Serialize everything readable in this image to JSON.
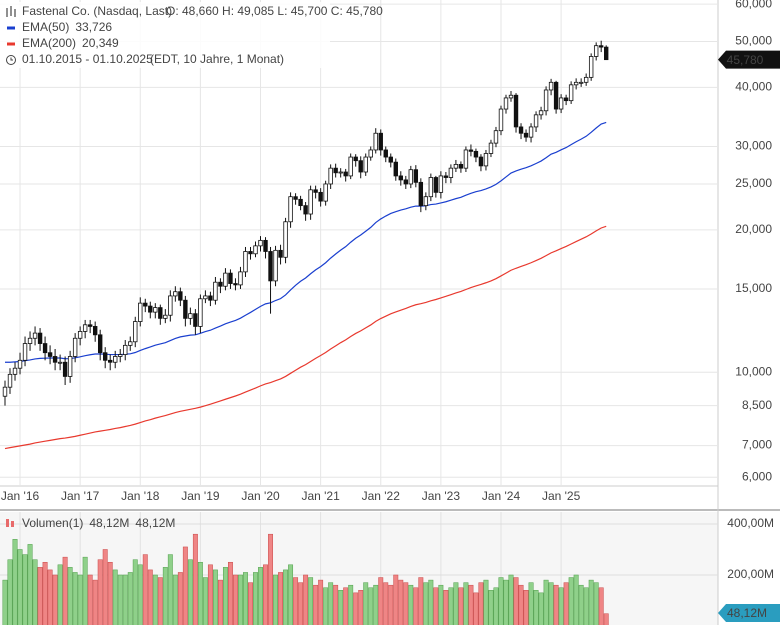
{
  "chart_data": [
    {
      "type": "candlestick",
      "title": "Fastenal Co. (Nasdaq, Last)",
      "ohlc_text": "O: 48,660   H: 49,085   L: 45,700   C: 45,780",
      "date_range": "01.10.2015 - 01.10.2025",
      "date_note": "(EDT, 10 Jahre, 1 Monat)",
      "last_label": "45,780",
      "up_color": "#ffffff",
      "down_color": "#111111",
      "x": [
        "2015-10",
        "2015-11",
        "2015-12",
        "2016-01",
        "2016-02",
        "2016-03",
        "2016-04",
        "2016-05",
        "2016-06",
        "2016-07",
        "2016-08",
        "2016-09",
        "2016-10",
        "2016-11",
        "2016-12",
        "2017-01",
        "2017-02",
        "2017-03",
        "2017-04",
        "2017-05",
        "2017-06",
        "2017-07",
        "2017-08",
        "2017-09",
        "2017-10",
        "2017-11",
        "2017-12",
        "2018-01",
        "2018-02",
        "2018-03",
        "2018-04",
        "2018-05",
        "2018-06",
        "2018-07",
        "2018-08",
        "2018-09",
        "2018-10",
        "2018-11",
        "2018-12",
        "2019-01",
        "2019-02",
        "2019-03",
        "2019-04",
        "2019-05",
        "2019-06",
        "2019-07",
        "2019-08",
        "2019-09",
        "2019-10",
        "2019-11",
        "2019-12",
        "2020-01",
        "2020-02",
        "2020-03",
        "2020-04",
        "2020-05",
        "2020-06",
        "2020-07",
        "2020-08",
        "2020-09",
        "2020-10",
        "2020-11",
        "2020-12",
        "2021-01",
        "2021-02",
        "2021-03",
        "2021-04",
        "2021-05",
        "2021-06",
        "2021-07",
        "2021-08",
        "2021-09",
        "2021-10",
        "2021-11",
        "2021-12",
        "2022-01",
        "2022-02",
        "2022-03",
        "2022-04",
        "2022-05",
        "2022-06",
        "2022-07",
        "2022-08",
        "2022-09",
        "2022-10",
        "2022-11",
        "2022-12",
        "2023-01",
        "2023-02",
        "2023-03",
        "2023-04",
        "2023-05",
        "2023-06",
        "2023-07",
        "2023-08",
        "2023-09",
        "2023-10",
        "2023-11",
        "2023-12",
        "2024-01",
        "2024-02",
        "2024-03",
        "2024-04",
        "2024-05",
        "2024-06",
        "2024-07",
        "2024-08",
        "2024-09",
        "2024-10",
        "2024-11",
        "2024-12",
        "2025-01",
        "2025-02",
        "2025-03",
        "2025-04",
        "2025-05",
        "2025-06",
        "2025-07",
        "2025-08",
        "2025-09",
        "2025-10"
      ],
      "open": [
        8.9,
        9.3,
        9.9,
        10.2,
        10.6,
        11.5,
        11.8,
        12.1,
        11.5,
        11.0,
        10.8,
        10.5,
        10.5,
        9.8,
        10.8,
        11.8,
        12.2,
        12.6,
        12.5,
        12.0,
        11.0,
        10.6,
        10.5,
        10.8,
        10.9,
        11.4,
        11.6,
        12.8,
        14.0,
        13.8,
        13.4,
        13.7,
        13.0,
        13.2,
        14.5,
        14.8,
        14.2,
        13.0,
        13.3,
        12.5,
        14.3,
        14.5,
        14.2,
        15.5,
        15.2,
        16.2,
        15.4,
        15.3,
        16.3,
        18.0,
        17.8,
        18.5,
        19.0,
        18.0,
        15.6,
        18.1,
        17.5,
        20.8,
        23.5,
        23.2,
        22.5,
        21.6,
        24.3,
        24.0,
        23.0,
        25.0,
        27.0,
        26.4,
        26.5,
        26.0,
        28.5,
        28.0,
        26.5,
        28.5,
        29.5,
        32.0,
        29.5,
        28.5,
        27.8,
        26.0,
        25.5,
        25.0,
        26.8,
        25.2,
        22.5,
        23.5,
        25.8,
        24.0,
        26.0,
        25.8,
        27.0,
        27.5,
        27.0,
        29.5,
        29.3,
        28.5,
        27.3,
        29.0,
        30.5,
        32.4,
        36.0,
        38.0,
        38.5,
        33.0,
        32.0,
        31.4,
        33.0,
        35.0,
        35.7,
        39.5,
        41.0,
        36.0,
        38.0,
        37.5,
        40.5,
        41.0,
        41.0,
        42.0,
        46.5,
        49.0,
        48.66
      ],
      "high": [
        9.6,
        10.2,
        10.5,
        11.0,
        11.9,
        12.2,
        12.5,
        12.4,
        11.9,
        11.4,
        11.2,
        10.9,
        10.8,
        11.1,
        12.1,
        12.5,
        12.9,
        12.9,
        12.8,
        12.3,
        11.3,
        10.9,
        11.1,
        11.2,
        11.7,
        11.9,
        13.1,
        14.4,
        14.3,
        14.1,
        14.0,
        13.9,
        13.6,
        14.9,
        15.2,
        15.1,
        14.5,
        13.7,
        13.6,
        14.6,
        14.9,
        14.8,
        15.9,
        15.8,
        16.6,
        16.5,
        15.8,
        16.7,
        18.4,
        18.4,
        18.9,
        19.4,
        19.3,
        18.4,
        18.5,
        18.6,
        21.2,
        24.0,
        23.9,
        23.6,
        22.9,
        24.8,
        24.8,
        24.5,
        25.4,
        27.5,
        27.6,
        27.0,
        26.9,
        29.0,
        28.9,
        28.6,
        29.0,
        30.0,
        32.8,
        32.6,
        30.0,
        29.0,
        28.3,
        26.6,
        26.0,
        27.3,
        27.4,
        25.7,
        24.0,
        26.3,
        26.0,
        26.6,
        26.5,
        27.5,
        28.1,
        27.9,
        30.0,
        30.3,
        29.7,
        28.9,
        29.5,
        31.0,
        33.0,
        36.6,
        38.6,
        39.3,
        38.9,
        33.6,
        32.6,
        33.6,
        35.6,
        36.4,
        40.2,
        41.7,
        41.3,
        38.7,
        38.6,
        41.2,
        41.8,
        41.8,
        42.8,
        47.2,
        49.8,
        50.2,
        49.085
      ],
      "low": [
        8.5,
        9.0,
        9.6,
        9.9,
        10.3,
        11.1,
        11.4,
        11.1,
        10.6,
        10.4,
        10.1,
        10.1,
        9.4,
        9.5,
        10.5,
        11.4,
        11.8,
        12.1,
        11.6,
        10.6,
        10.2,
        10.1,
        10.2,
        10.5,
        10.6,
        11.1,
        11.3,
        12.5,
        13.4,
        13.0,
        13.0,
        12.6,
        12.7,
        12.8,
        14.1,
        13.8,
        12.5,
        12.6,
        12.0,
        12.1,
        14.0,
        13.8,
        13.9,
        14.7,
        14.9,
        15.0,
        14.9,
        15.0,
        15.9,
        17.3,
        17.5,
        18.0,
        17.4,
        13.3,
        15.2,
        16.9,
        17.0,
        20.2,
        22.6,
        22.0,
        20.9,
        21.0,
        23.3,
        22.4,
        22.5,
        24.4,
        25.8,
        25.8,
        25.3,
        25.6,
        27.2,
        25.7,
        26.0,
        28.0,
        29.0,
        28.7,
        27.8,
        27.1,
        25.4,
        24.8,
        24.4,
        24.5,
        24.6,
        21.8,
        22.0,
        23.0,
        23.4,
        23.3,
        25.1,
        25.1,
        26.5,
        26.4,
        26.5,
        28.6,
        27.8,
        26.6,
        26.7,
        28.5,
        29.9,
        31.7,
        35.2,
        37.3,
        32.1,
        31.1,
        30.7,
        30.6,
        32.2,
        34.2,
        34.9,
        38.5,
        35.2,
        35.3,
        36.7,
        36.9,
        39.6,
        40.1,
        40.3,
        41.3,
        45.6,
        47.5,
        45.7
      ],
      "close": [
        9.3,
        9.9,
        10.2,
        10.6,
        11.5,
        11.8,
        12.1,
        11.5,
        11.0,
        10.8,
        10.5,
        10.5,
        9.8,
        10.8,
        11.8,
        12.2,
        12.6,
        12.5,
        12.0,
        11.0,
        10.6,
        10.5,
        10.8,
        10.9,
        11.4,
        11.6,
        12.8,
        14.0,
        13.8,
        13.4,
        13.7,
        13.0,
        13.2,
        14.5,
        14.8,
        14.2,
        13.0,
        13.3,
        12.5,
        14.3,
        14.5,
        14.2,
        15.5,
        15.2,
        16.2,
        15.4,
        15.3,
        16.3,
        18.0,
        17.8,
        18.5,
        19.0,
        18.0,
        15.6,
        18.1,
        17.5,
        20.8,
        23.5,
        23.2,
        22.5,
        21.6,
        24.3,
        24.0,
        23.0,
        25.0,
        27.0,
        26.4,
        26.5,
        26.0,
        28.5,
        28.0,
        26.5,
        28.5,
        29.5,
        32.0,
        29.5,
        28.5,
        27.8,
        26.0,
        25.5,
        25.0,
        26.8,
        25.2,
        22.5,
        23.5,
        25.8,
        24.0,
        26.0,
        25.8,
        27.0,
        27.5,
        27.0,
        29.5,
        29.3,
        28.5,
        27.3,
        29.0,
        30.5,
        32.4,
        36.0,
        38.0,
        38.5,
        33.0,
        32.0,
        31.4,
        33.0,
        35.0,
        35.7,
        39.5,
        41.0,
        36.0,
        38.0,
        37.5,
        40.5,
        41.0,
        41.0,
        42.0,
        46.5,
        49.0,
        48.66,
        45.78
      ],
      "series": [
        {
          "name": "EMA(50)",
          "color": "#1a3fcf",
          "value_label": "33,726",
          "values": [
            10.5,
            10.5,
            10.52,
            10.54,
            10.58,
            10.62,
            10.67,
            10.7,
            10.71,
            10.72,
            10.72,
            10.72,
            10.68,
            10.69,
            10.73,
            10.78,
            10.84,
            10.89,
            10.93,
            10.93,
            10.92,
            10.9,
            10.9,
            10.9,
            10.92,
            10.94,
            11.01,
            11.12,
            11.22,
            11.31,
            11.41,
            11.48,
            11.55,
            11.67,
            11.79,
            11.88,
            11.93,
            11.98,
            12.0,
            12.09,
            12.19,
            12.27,
            12.4,
            12.52,
            12.66,
            12.77,
            12.87,
            13.01,
            13.2,
            13.38,
            13.58,
            13.78,
            13.95,
            14.02,
            14.18,
            14.31,
            14.57,
            14.93,
            15.27,
            15.57,
            15.82,
            16.15,
            16.46,
            16.72,
            17.04,
            17.43,
            17.78,
            18.12,
            18.43,
            18.83,
            19.2,
            19.5,
            19.86,
            20.24,
            20.72,
            21.09,
            21.39,
            21.66,
            21.85,
            22.02,
            22.15,
            22.33,
            22.45,
            22.45,
            22.49,
            22.62,
            22.67,
            22.8,
            22.93,
            23.1,
            23.28,
            23.43,
            23.67,
            23.89,
            24.08,
            24.21,
            24.4,
            24.64,
            24.95,
            25.38,
            25.87,
            26.37,
            26.64,
            26.86,
            27.06,
            27.31,
            27.62,
            27.95,
            28.4,
            28.9,
            29.17,
            29.52,
            29.84,
            30.27,
            30.7,
            31.1,
            31.53,
            32.14,
            32.83,
            33.47,
            33.726
          ]
        },
        {
          "name": "EMA(200)",
          "color": "#e8392e",
          "value_label": "20,349",
          "values": [
            6.9,
            6.93,
            6.96,
            6.99,
            7.02,
            7.05,
            7.09,
            7.12,
            7.15,
            7.18,
            7.21,
            7.24,
            7.26,
            7.29,
            7.32,
            7.36,
            7.4,
            7.44,
            7.48,
            7.51,
            7.54,
            7.57,
            7.61,
            7.64,
            7.68,
            7.72,
            7.77,
            7.83,
            7.89,
            7.94,
            8.0,
            8.05,
            8.1,
            8.16,
            8.22,
            8.27,
            8.31,
            8.35,
            8.39,
            8.44,
            8.5,
            8.56,
            8.63,
            8.7,
            8.77,
            8.84,
            8.91,
            8.99,
            9.08,
            9.17,
            9.26,
            9.36,
            9.45,
            9.51,
            9.6,
            9.68,
            9.8,
            9.95,
            10.1,
            10.25,
            10.38,
            10.54,
            10.7,
            10.85,
            11.01,
            11.2,
            11.37,
            11.55,
            11.71,
            11.9,
            12.08,
            12.23,
            12.41,
            12.59,
            12.81,
            12.99,
            13.14,
            13.29,
            13.41,
            13.53,
            13.64,
            13.78,
            13.89,
            13.96,
            14.05,
            14.16,
            14.25,
            14.36,
            14.47,
            14.59,
            14.71,
            14.82,
            14.96,
            15.1,
            15.22,
            15.33,
            15.46,
            15.6,
            15.77,
            15.98,
            16.2,
            16.43,
            16.59,
            16.74,
            16.88,
            17.04,
            17.22,
            17.41,
            17.64,
            17.88,
            18.06,
            18.26,
            18.45,
            18.67,
            18.89,
            19.11,
            19.33,
            19.6,
            19.9,
            20.18,
            20.349
          ]
        }
      ],
      "log_scale": true,
      "grid": true,
      "ylim": [
        5.75,
        61.2
      ],
      "yticks": [
        {
          "value": 60,
          "label": "60,000"
        },
        {
          "value": 50,
          "label": "50,000"
        },
        {
          "value": 40,
          "label": "40,000"
        },
        {
          "value": 30,
          "label": "30,000"
        },
        {
          "value": 25,
          "label": "25,000"
        },
        {
          "value": 20,
          "label": "20,000"
        },
        {
          "value": 15,
          "label": "15,000"
        },
        {
          "value": 10,
          "label": "10,000"
        },
        {
          "value": 8.5,
          "label": "8,500"
        },
        {
          "value": 7,
          "label": "7,000"
        },
        {
          "value": 6,
          "label": "6,000"
        }
      ],
      "xticks": [
        {
          "value": "2016-01",
          "label": "Jan '16"
        },
        {
          "value": "2017-01",
          "label": "Jan '17"
        },
        {
          "value": "2018-01",
          "label": "Jan '18"
        },
        {
          "value": "2019-01",
          "label": "Jan '19"
        },
        {
          "value": "2020-01",
          "label": "Jan '20"
        },
        {
          "value": "2021-01",
          "label": "Jan '21"
        },
        {
          "value": "2022-01",
          "label": "Jan '22"
        },
        {
          "value": "2023-01",
          "label": "Jan '23"
        },
        {
          "value": "2024-01",
          "label": "Jan '24"
        },
        {
          "value": "2025-01",
          "label": "Jan '25"
        }
      ]
    },
    {
      "type": "bar",
      "name": "Volumen(1)",
      "legend_labels": [
        "48,12M",
        "48,12M"
      ],
      "last_label": "48,12M",
      "up_color": "#8fd08a",
      "down_color": "#ef8585",
      "values": [
        180,
        260,
        340,
        300,
        280,
        320,
        260,
        230,
        250,
        220,
        200,
        240,
        270,
        230,
        210,
        200,
        270,
        200,
        180,
        260,
        300,
        250,
        220,
        200,
        200,
        210,
        260,
        240,
        280,
        220,
        200,
        190,
        230,
        280,
        200,
        210,
        310,
        260,
        360,
        250,
        190,
        240,
        220,
        180,
        230,
        250,
        200,
        200,
        210,
        170,
        210,
        230,
        240,
        360,
        200,
        210,
        220,
        240,
        190,
        170,
        200,
        190,
        160,
        180,
        150,
        170,
        160,
        140,
        150,
        160,
        130,
        140,
        170,
        150,
        160,
        190,
        170,
        160,
        200,
        180,
        170,
        160,
        150,
        190,
        170,
        180,
        150,
        160,
        140,
        150,
        170,
        150,
        170,
        160,
        130,
        170,
        180,
        140,
        150,
        190,
        180,
        200,
        190,
        160,
        140,
        170,
        140,
        130,
        180,
        170,
        160,
        150,
        170,
        190,
        200,
        160,
        150,
        180,
        170,
        150,
        48.12
      ],
      "ylim": [
        0,
        447
      ],
      "yticks": [
        {
          "value": 400,
          "label": "400,00M"
        },
        {
          "value": 200,
          "label": "200,00M"
        }
      ]
    }
  ]
}
